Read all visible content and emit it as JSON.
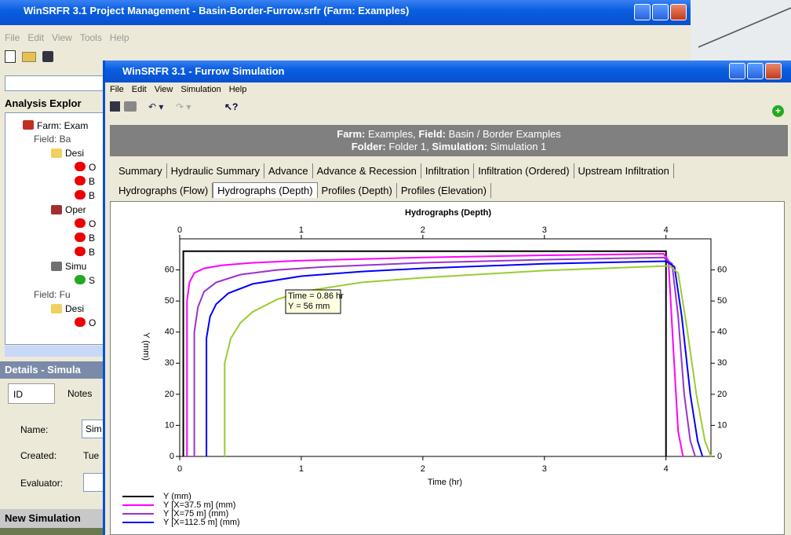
{
  "background_window": {
    "title": "WinSRFR 3.1 Project Management - Basin-Border-Furrow.srfr (Farm: Examples)",
    "menu": [
      "File",
      "Edit",
      "View",
      "Tools",
      "Help"
    ],
    "explorer_title": "Analysis Explor",
    "tree": [
      "Farm: Exam",
      "Field: Ba",
      "Desi",
      "O",
      "B",
      "B",
      "Oper",
      "O",
      "B",
      "B",
      "Simu",
      "S",
      "Field: Fu",
      "Desi",
      "O"
    ],
    "details_title": "Details - Simula",
    "details_tabs": [
      "ID",
      "Notes"
    ],
    "name_label": "Name:",
    "name_value": "Sim",
    "created_label": "Created:",
    "created_value": "Tue",
    "evaluator_label": "Evaluator:",
    "footer": "New Simulation"
  },
  "window": {
    "title": "WinSRFR 3.1 - Furrow Simulation",
    "menu": [
      "File",
      "Edit",
      "View",
      "Simulation",
      "Help"
    ],
    "info": {
      "farm_label": "Farm:",
      "farm": "Examples,",
      "field_label": "Field:",
      "field": "Basin / Border Examples",
      "folder_label": "Folder:",
      "folder": "Folder 1,",
      "simulation_label": "Simulation:",
      "simulation": "Simulation 1"
    },
    "tabs_row1": [
      "Summary",
      "Hydraulic Summary",
      "Advance",
      "Advance & Recession",
      "Infiltration",
      "Infiltration (Ordered)",
      "Upstream Infiltration"
    ],
    "tabs_row2": [
      "Hydrographs (Flow)",
      "Hydrographs (Depth)",
      "Profiles (Depth)",
      "Profiles (Elevation)"
    ]
  },
  "chart_data": {
    "type": "line",
    "title": "Hydrographs (Depth)",
    "x_label": "Time (hr)",
    "y_label": "Y (mm)",
    "annotation": [
      "Time = 0.86 hr",
      "Y = 56 mm"
    ],
    "xlim": [
      0,
      4.37
    ],
    "ylim": [
      0,
      70
    ],
    "xticks": [
      0,
      1,
      2,
      3,
      4
    ],
    "yticks": [
      0,
      10,
      20,
      30,
      40,
      50,
      60
    ],
    "series": [
      {
        "name": "Y (mm)",
        "color": "#000000",
        "x": [
          0.03,
          0.03,
          4.0,
          4.0
        ],
        "values": [
          0,
          66,
          66,
          0
        ]
      },
      {
        "name": "Y [X=37.5 m] (mm)",
        "color": "#ff00ff",
        "x": [
          0.06,
          0.06,
          0.08,
          0.12,
          0.2,
          0.35,
          0.6,
          1,
          2,
          3,
          3.98,
          4.02,
          4.06,
          4.1,
          4.14
        ],
        "values": [
          0,
          50,
          56,
          59,
          60.5,
          61.5,
          62.3,
          63,
          64,
          64.7,
          65.2,
          63,
          35,
          8,
          0
        ]
      },
      {
        "name": "Y [X=75 m] (mm)",
        "color": "#9933cc",
        "x": [
          0.12,
          0.12,
          0.15,
          0.2,
          0.3,
          0.5,
          0.8,
          1.2,
          2,
          3,
          3.98,
          4.05,
          4.1,
          4.15,
          4.2,
          4.24
        ],
        "values": [
          0,
          40,
          48,
          53,
          56,
          58.5,
          60,
          61,
          62.3,
          63.3,
          64,
          62,
          45,
          20,
          5,
          0
        ]
      },
      {
        "name": "Y [X=112.5 m] (mm)",
        "color": "#0000ff",
        "x": [
          0.22,
          0.22,
          0.25,
          0.3,
          0.4,
          0.6,
          1,
          1.5,
          2,
          3,
          4,
          4.07,
          4.13,
          4.2,
          4.26,
          4.3
        ],
        "values": [
          0,
          38,
          45,
          49,
          52.5,
          55.5,
          58,
          59.5,
          60.5,
          62,
          62.8,
          61,
          45,
          20,
          5,
          0
        ]
      },
      {
        "color": "#99cc33",
        "x": [
          0.37,
          0.37,
          0.42,
          0.5,
          0.6,
          0.8,
          1,
          1.5,
          2,
          3,
          4.03,
          4.1,
          4.17,
          4.25,
          4.32,
          4.37
        ],
        "values": [
          0,
          30,
          38,
          43,
          46.5,
          50.5,
          53,
          56,
          57.5,
          59.8,
          61.3,
          59,
          42,
          20,
          5,
          0
        ]
      }
    ]
  }
}
